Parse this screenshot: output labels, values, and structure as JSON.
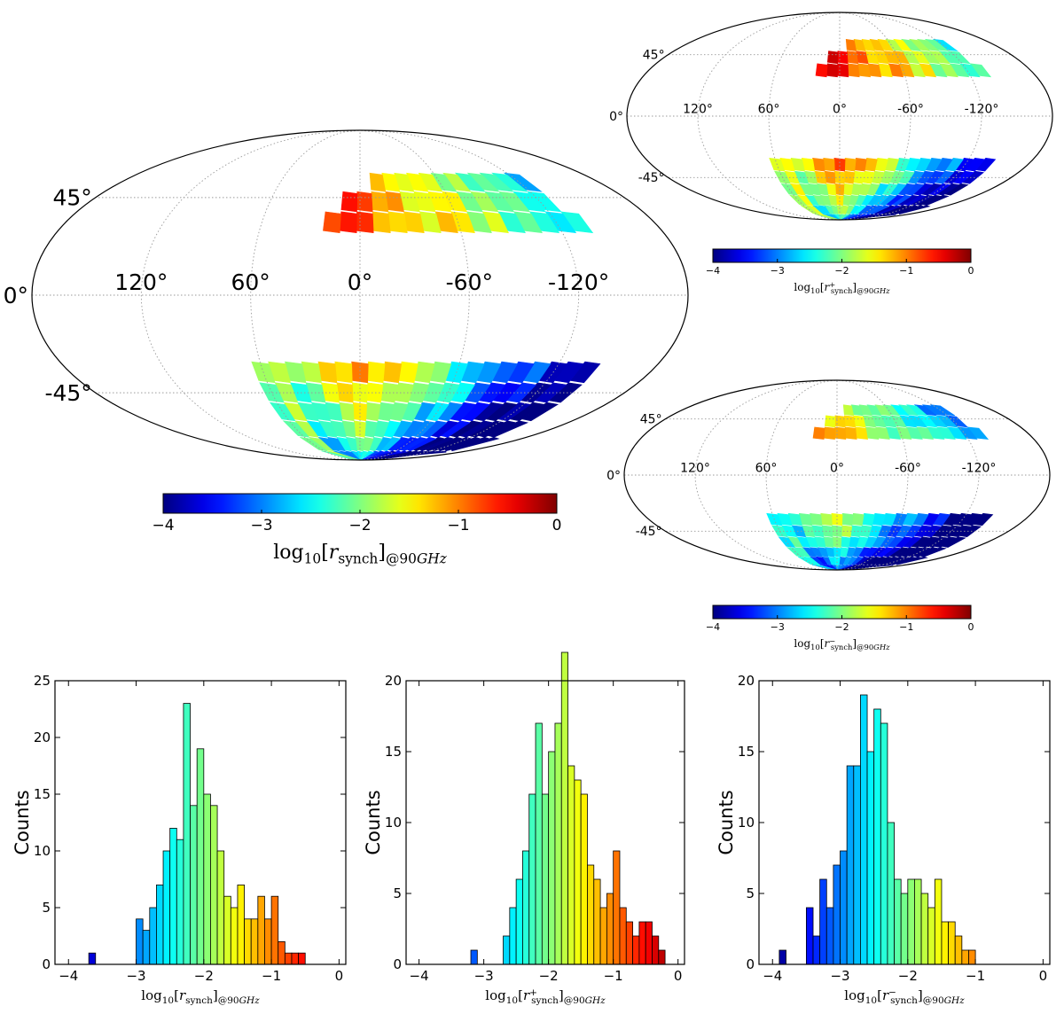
{
  "colors": {
    "colormap": "jet",
    "outline": "#000000",
    "grid": "#9a9a9a"
  },
  "chart_data": [
    {
      "type": "heatmap",
      "projection": "mollweide",
      "id": "map-main",
      "lon_labels": [
        "120°",
        "60°",
        "0°",
        "-60°",
        "-120°"
      ],
      "lat_labels": [
        "45°",
        "0°",
        "-45°"
      ],
      "colorbar": {
        "ticks": [
          "−4",
          "−3",
          "−2",
          "−1",
          "0"
        ],
        "range": [
          -4,
          0
        ],
        "label_base": "log",
        "label_sub": "10",
        "label_r": "r",
        "label_r_sub": "synch",
        "label_r_sup": "",
        "label_at": "@90",
        "label_unit": "GHz"
      }
    },
    {
      "type": "heatmap",
      "projection": "mollweide",
      "id": "map-plus",
      "lon_labels": [
        "120°",
        "60°",
        "0°",
        "-60°",
        "-120°"
      ],
      "lat_labels": [
        "45°",
        "0°",
        "-45°"
      ],
      "colorbar": {
        "ticks": [
          "−4",
          "−3",
          "−2",
          "−1",
          "0"
        ],
        "range": [
          -4,
          0
        ],
        "label_base": "log",
        "label_sub": "10",
        "label_r": "r",
        "label_r_sub": "synch",
        "label_r_sup": "+",
        "label_at": "@90",
        "label_unit": "GHz"
      }
    },
    {
      "type": "heatmap",
      "projection": "mollweide",
      "id": "map-minus",
      "lon_labels": [
        "120°",
        "60°",
        "0°",
        "-60°",
        "-120°"
      ],
      "lat_labels": [
        "45°",
        "0°",
        "-45°"
      ],
      "colorbar": {
        "ticks": [
          "−4",
          "−3",
          "−2",
          "−1",
          "0"
        ],
        "range": [
          -4,
          0
        ],
        "label_base": "log",
        "label_sub": "10",
        "label_r": "r",
        "label_r_sub": "synch",
        "label_r_sup": "−",
        "label_at": "@90",
        "label_unit": "GHz"
      }
    },
    {
      "type": "bar",
      "id": "hist-r",
      "ylabel": "Counts",
      "xlabel": {
        "base": "log",
        "sub": "10",
        "r": "r",
        "r_sub": "synch",
        "r_sup": "",
        "at": "@90",
        "unit": "GHz"
      },
      "xlim": [
        -4.2,
        0.1
      ],
      "ylim": [
        0,
        25
      ],
      "x_ticks": [
        -4,
        -3,
        -2,
        -1,
        0
      ],
      "x_tick_labels": [
        "−4",
        "−3",
        "−2",
        "−1",
        "0"
      ],
      "y_ticks": [
        0,
        5,
        10,
        15,
        20,
        25
      ],
      "bin_width": 0.1,
      "bin_left_edges": [
        -3.7,
        -3.0,
        -2.9,
        -2.8,
        -2.7,
        -2.6,
        -2.5,
        -2.4,
        -2.3,
        -2.2,
        -2.1,
        -2.0,
        -1.9,
        -1.8,
        -1.7,
        -1.6,
        -1.5,
        -1.4,
        -1.3,
        -1.2,
        -1.1,
        -1.0,
        -0.9,
        -0.8,
        -0.7,
        -0.6
      ],
      "values": [
        1,
        4,
        3,
        5,
        7,
        10,
        12,
        11,
        23,
        14,
        19,
        15,
        14,
        10,
        6,
        5,
        7,
        4,
        4,
        6,
        4,
        6,
        2,
        1,
        1,
        1
      ]
    },
    {
      "type": "bar",
      "id": "hist-r-plus",
      "ylabel": "Counts",
      "xlabel": {
        "base": "log",
        "sub": "10",
        "r": "r",
        "r_sub": "synch",
        "r_sup": "+",
        "at": "@90",
        "unit": "GHz"
      },
      "xlim": [
        -4.2,
        0.1
      ],
      "ylim": [
        0,
        20
      ],
      "x_ticks": [
        -4,
        -3,
        -2,
        -1,
        0
      ],
      "x_tick_labels": [
        "−4",
        "−3",
        "−2",
        "−1",
        "0"
      ],
      "y_ticks": [
        0,
        5,
        10,
        15,
        20
      ],
      "bin_width": 0.1,
      "bin_left_edges": [
        -3.2,
        -2.7,
        -2.6,
        -2.5,
        -2.4,
        -2.3,
        -2.2,
        -2.1,
        -2.0,
        -1.9,
        -1.8,
        -1.7,
        -1.6,
        -1.5,
        -1.4,
        -1.3,
        -1.2,
        -1.1,
        -1.0,
        -0.9,
        -0.8,
        -0.7,
        -0.6,
        -0.5,
        -0.4,
        -0.3
      ],
      "values": [
        1,
        2,
        4,
        6,
        8,
        12,
        17,
        12,
        15,
        17,
        22,
        14,
        13,
        12,
        7,
        6,
        4,
        5,
        8,
        4,
        3,
        2,
        3,
        3,
        2,
        1
      ]
    },
    {
      "type": "bar",
      "id": "hist-r-minus",
      "ylabel": "Counts",
      "xlabel": {
        "base": "log",
        "sub": "10",
        "r": "r",
        "r_sub": "synch",
        "r_sup": "−",
        "at": "@90",
        "unit": "GHz"
      },
      "xlim": [
        -4.2,
        0.1
      ],
      "ylim": [
        0,
        20
      ],
      "x_ticks": [
        -4,
        -3,
        -2,
        -1,
        0
      ],
      "x_tick_labels": [
        "−4",
        "−3",
        "−2",
        "−1",
        "0"
      ],
      "y_ticks": [
        0,
        5,
        10,
        15,
        20
      ],
      "bin_width": 0.1,
      "bin_left_edges": [
        -3.9,
        -3.5,
        -3.4,
        -3.3,
        -3.2,
        -3.1,
        -3.0,
        -2.9,
        -2.8,
        -2.7,
        -2.6,
        -2.5,
        -2.4,
        -2.3,
        -2.2,
        -2.1,
        -2.0,
        -1.9,
        -1.8,
        -1.7,
        -1.6,
        -1.5,
        -1.4,
        -1.3,
        -1.2,
        -1.1
      ],
      "values": [
        1,
        4,
        2,
        6,
        4,
        7,
        8,
        14,
        14,
        19,
        15,
        18,
        17,
        10,
        6,
        5,
        6,
        6,
        5,
        4,
        6,
        3,
        3,
        2,
        1,
        1
      ]
    }
  ]
}
